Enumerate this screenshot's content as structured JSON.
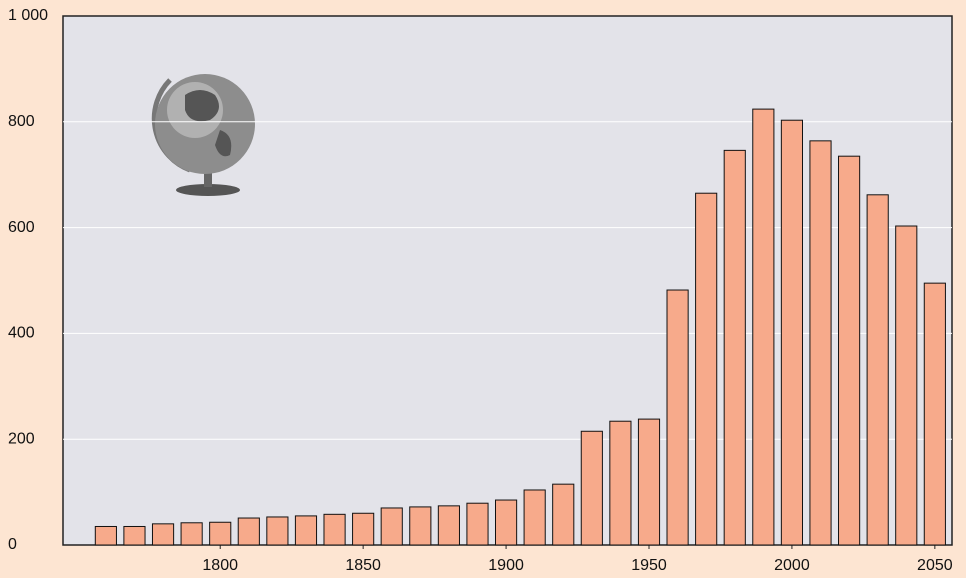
{
  "chart_data": {
    "type": "bar",
    "x": [
      1760,
      1770,
      1780,
      1790,
      1800,
      1810,
      1820,
      1830,
      1840,
      1850,
      1860,
      1870,
      1880,
      1890,
      1900,
      1910,
      1920,
      1930,
      1940,
      1950,
      1960,
      1970,
      1980,
      1990,
      2000,
      2010,
      2020,
      2030,
      2040,
      2050
    ],
    "values": [
      35,
      35,
      40,
      42,
      43,
      51,
      53,
      55,
      58,
      60,
      70,
      72,
      74,
      79,
      85,
      104,
      115,
      215,
      234,
      238,
      482,
      665,
      746,
      824,
      803,
      764,
      735,
      662,
      603,
      495
    ],
    "color": "#f7aa8b",
    "xlim": [
      1745,
      2056
    ],
    "xticks": [
      1800,
      1850,
      1900,
      1950,
      2000,
      2050
    ],
    "ylim": [
      0,
      1000
    ],
    "yticks": [
      0,
      200,
      400,
      600,
      800,
      {
        "value": 1000,
        "label": "1 000"
      }
    ],
    "grid": true
  }
}
